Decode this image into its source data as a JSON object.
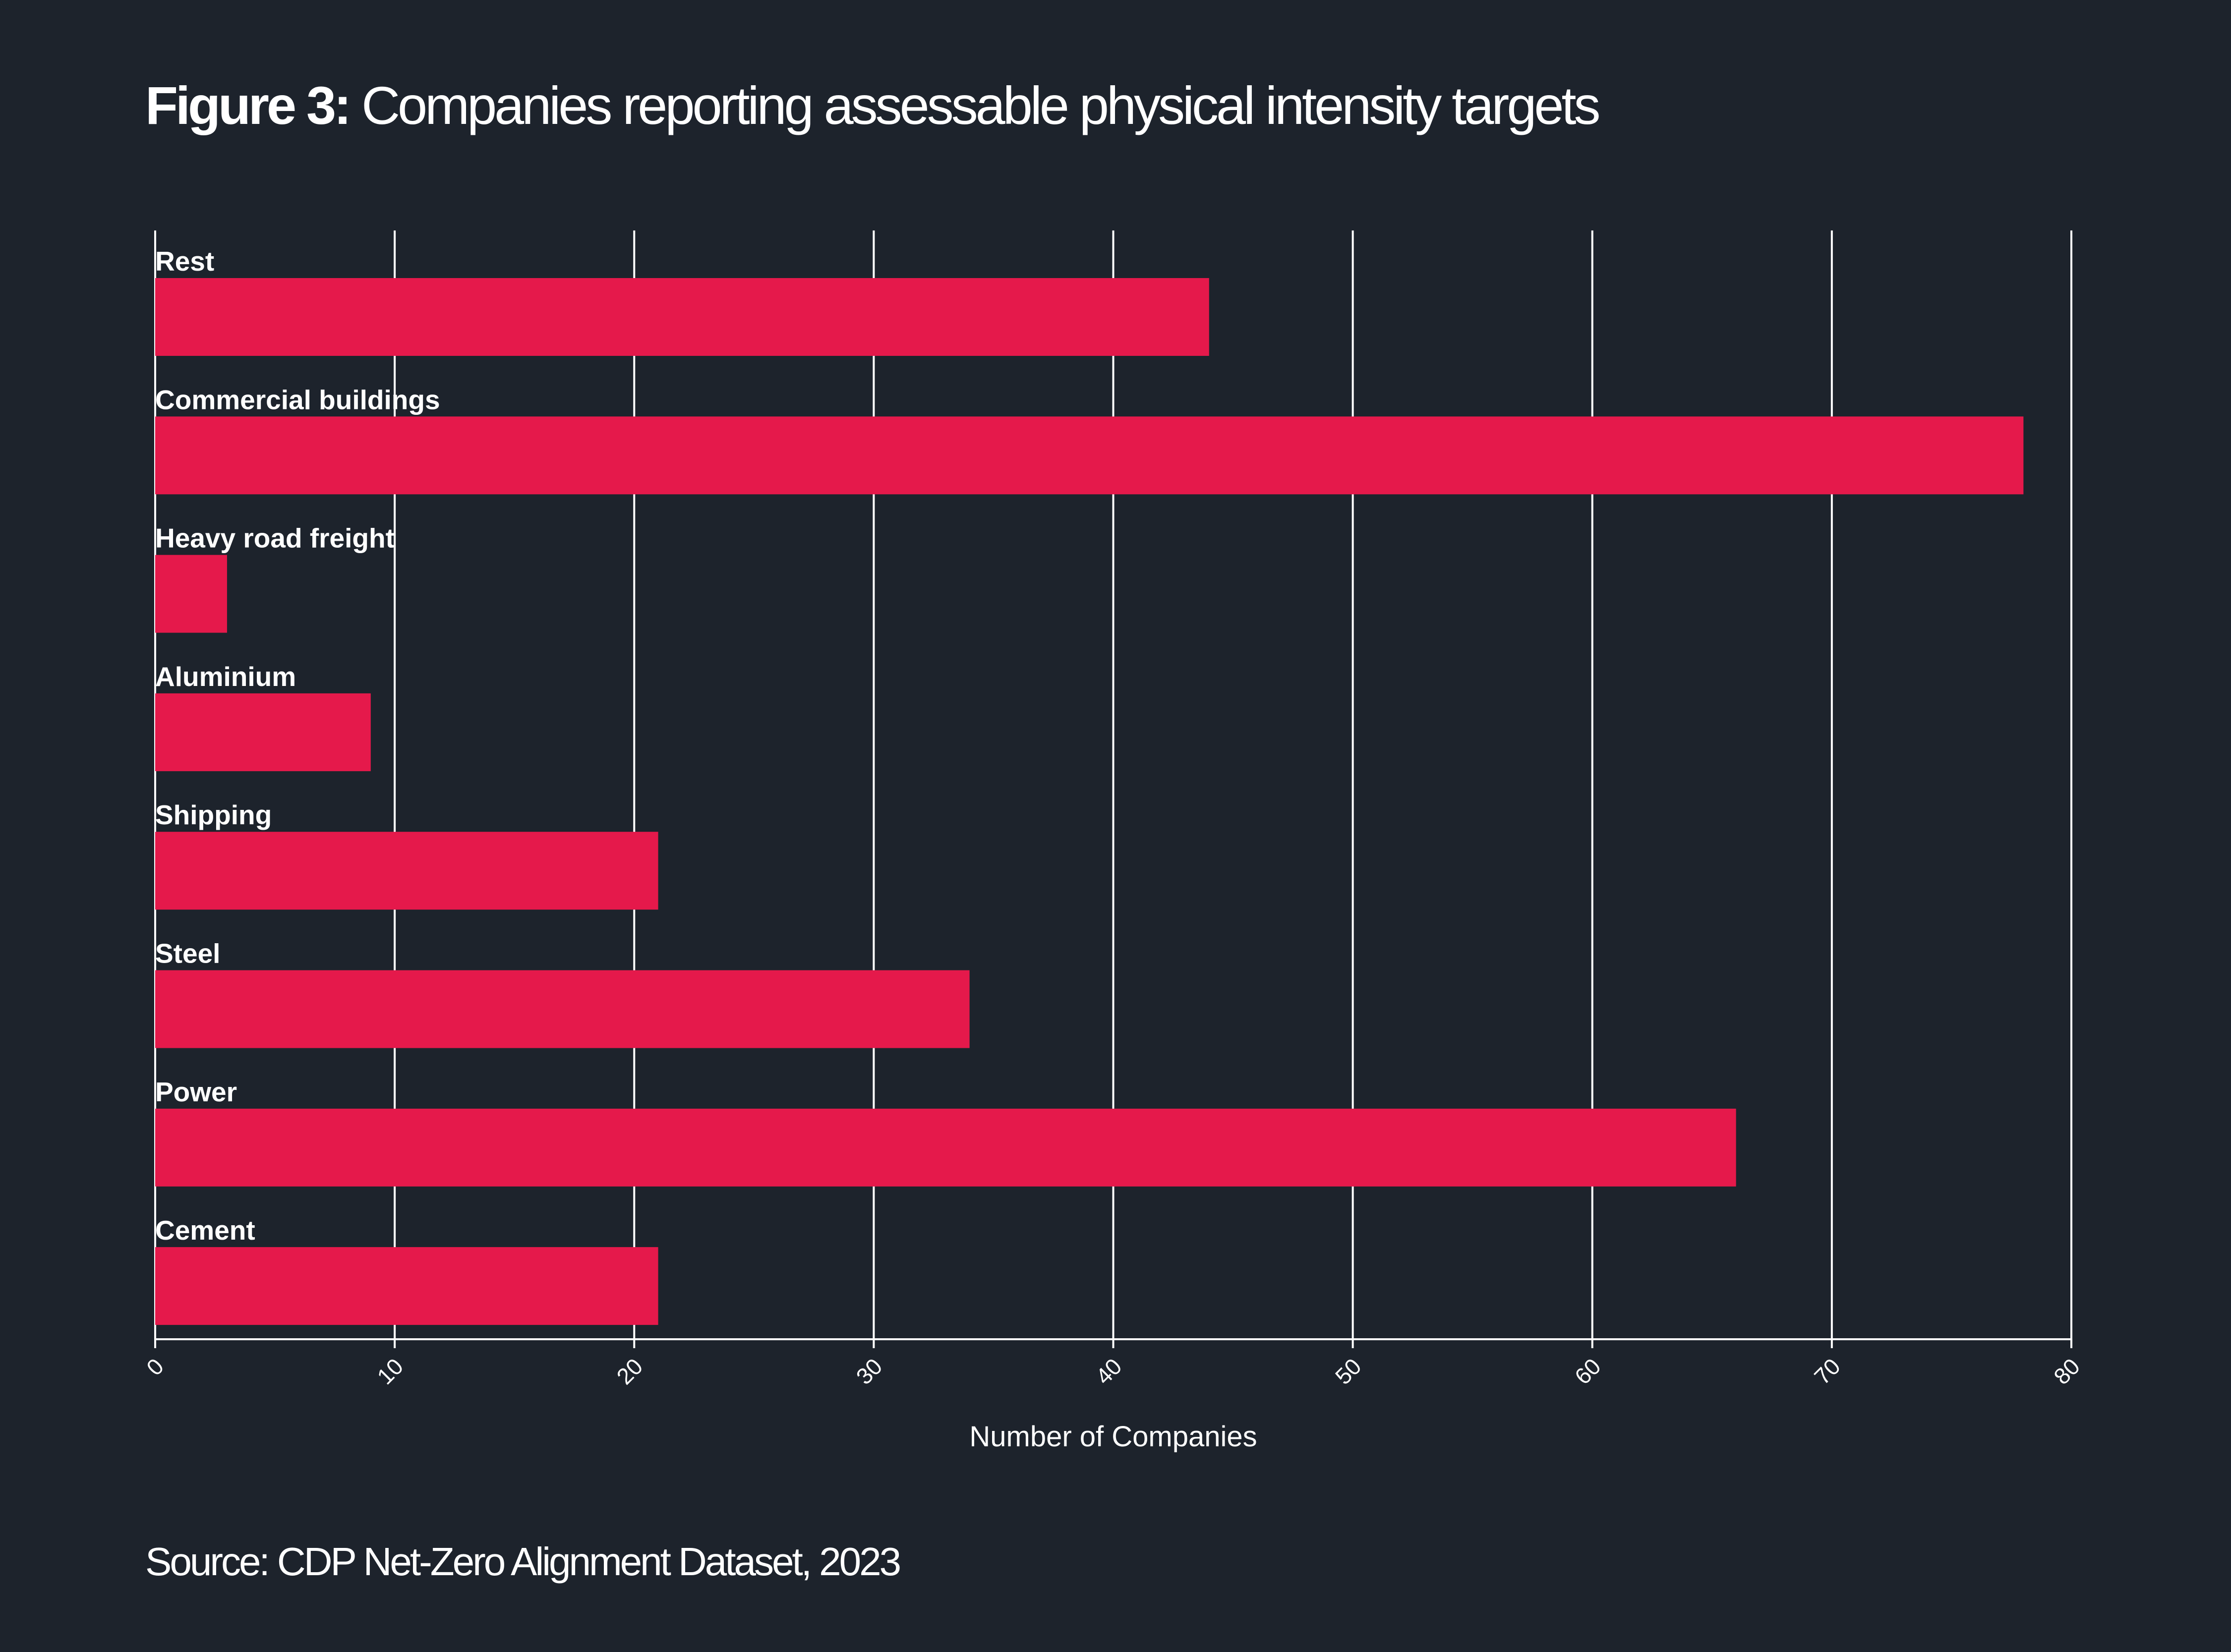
{
  "figure": {
    "label": "Figure 3:",
    "title": "Companies reporting assessable physical intensity targets"
  },
  "source": "Source: CDP Net-Zero Alignment Dataset, 2023",
  "colors": {
    "background": "#1d232c",
    "bar": "#e5194b",
    "text": "#ffffff",
    "grid": "#ffffff"
  },
  "chart_data": {
    "type": "bar",
    "orientation": "horizontal",
    "title": "Companies reporting assessable physical intensity targets",
    "categories": [
      "Rest",
      "Commercial buildings",
      "Heavy road freight",
      "Aluminium",
      "Shipping",
      "Steel",
      "Power",
      "Cement"
    ],
    "values": [
      44,
      78,
      3,
      9,
      21,
      34,
      66,
      21
    ],
    "xlabel": "Number of Companies",
    "ylabel": "",
    "xlim": [
      0,
      80
    ],
    "xticks": [
      0,
      10,
      20,
      30,
      40,
      50,
      60,
      70,
      80
    ],
    "grid": true,
    "legend": "none"
  }
}
